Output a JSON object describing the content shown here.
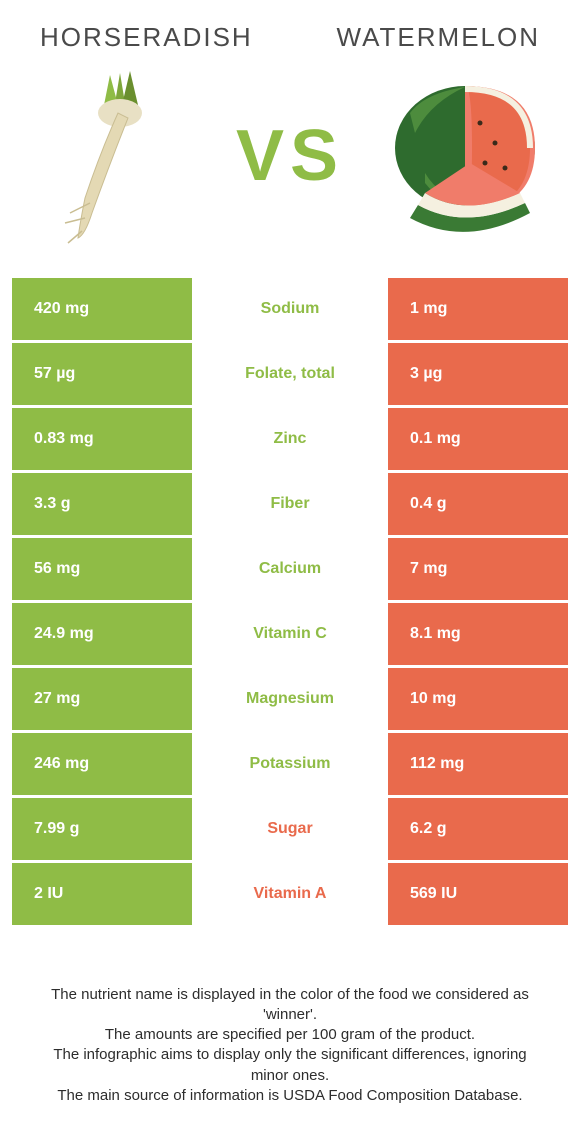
{
  "colors": {
    "left": "#8fbc46",
    "right": "#e96a4c",
    "text_dark": "#4a4a4a"
  },
  "foods": {
    "left_name": "Horseradish",
    "right_name": "Watermelon",
    "vs_label": "VS"
  },
  "rows": [
    {
      "left": "420 mg",
      "label": "Sodium",
      "right": "1 mg",
      "winner": "left"
    },
    {
      "left": "57 µg",
      "label": "Folate, total",
      "right": "3 µg",
      "winner": "left"
    },
    {
      "left": "0.83 mg",
      "label": "Zinc",
      "right": "0.1 mg",
      "winner": "left"
    },
    {
      "left": "3.3 g",
      "label": "Fiber",
      "right": "0.4 g",
      "winner": "left"
    },
    {
      "left": "56 mg",
      "label": "Calcium",
      "right": "7 mg",
      "winner": "left"
    },
    {
      "left": "24.9 mg",
      "label": "Vitamin C",
      "right": "8.1 mg",
      "winner": "left"
    },
    {
      "left": "27 mg",
      "label": "Magnesium",
      "right": "10 mg",
      "winner": "left"
    },
    {
      "left": "246 mg",
      "label": "Potassium",
      "right": "112 mg",
      "winner": "left"
    },
    {
      "left": "7.99 g",
      "label": "Sugar",
      "right": "6.2 g",
      "winner": "right"
    },
    {
      "left": "2 IU",
      "label": "Vitamin A",
      "right": "569 IU",
      "winner": "right"
    }
  ],
  "footer": {
    "line1": "The nutrient name is displayed in the color of the food we considered as 'winner'.",
    "line2": "The amounts are specified per 100 gram of the product.",
    "line3": "The infographic aims to display only the significant differences, ignoring minor ones.",
    "line4": "The main source of information is USDA Food Composition Database."
  }
}
